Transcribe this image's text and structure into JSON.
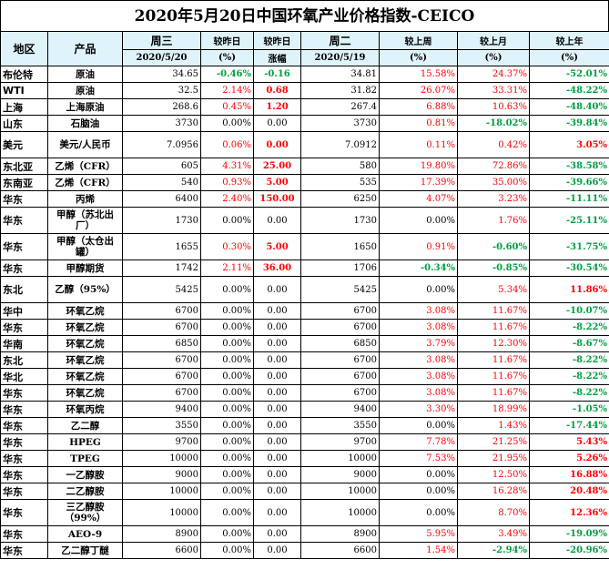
{
  "title": "2020年5月20日中国环氧产业价格指数-CEICO",
  "header": {
    "row1": [
      "地区",
      "产品",
      "周三",
      "较昨日",
      "较昨日",
      "周二",
      "较上周",
      "较上月",
      "较上年"
    ],
    "row2": [
      "",
      "",
      "2020/5/20",
      "(%)",
      "涨幅",
      "2020/5/19",
      "(%)",
      "(%)",
      "(%)"
    ]
  },
  "colors": {
    "positive": "#ff0000",
    "negative": "#00a040",
    "header_bg": "#dff3fb"
  },
  "rows": [
    {
      "region": "布伦特",
      "product": "原油",
      "wed": "34.65",
      "pct": "-0.46%",
      "chg": "-0.16",
      "tue": "34.81",
      "wk": "15.58%",
      "mo": "24.37%",
      "yr": "-52.01%",
      "c": [
        "",
        "g",
        "g",
        "",
        "r",
        "r",
        "g"
      ]
    },
    {
      "region": "WTI",
      "product": "原油",
      "wed": "32.5",
      "pct": "2.14%",
      "chg": "0.68",
      "tue": "31.82",
      "wk": "26.07%",
      "mo": "33.31%",
      "yr": "-48.22%",
      "c": [
        "",
        "r",
        "r",
        "",
        "r",
        "r",
        "g"
      ]
    },
    {
      "region": "上海",
      "product": "上海原油",
      "wed": "268.6",
      "pct": "0.45%",
      "chg": "1.20",
      "tue": "267.4",
      "wk": "6.88%",
      "mo": "10.63%",
      "yr": "-48.40%",
      "c": [
        "",
        "r",
        "r",
        "",
        "r",
        "r",
        "g"
      ]
    },
    {
      "region": "山东",
      "product": "石脑油",
      "wed": "3730",
      "pct": "0.00%",
      "chg": "0.00",
      "tue": "3730",
      "wk": "0.81%",
      "mo": "-18.02%",
      "yr": "-39.84%",
      "c": [
        "",
        "",
        "",
        "",
        "r",
        "g",
        "g"
      ]
    },
    {
      "region": "美元",
      "product": "美元/人民币",
      "wed": "7.0956",
      "pct": "0.06%",
      "chg": "0.00",
      "tue": "7.0912",
      "wk": "0.11%",
      "mo": "0.42%",
      "yr": "3.05%",
      "c": [
        "",
        "r",
        "r",
        "",
        "r",
        "r",
        "r"
      ],
      "tall": true
    },
    {
      "region": "东北亚",
      "product": "乙烯（CFR）",
      "wed": "605",
      "pct": "4.31%",
      "chg": "25.00",
      "tue": "580",
      "wk": "19.80%",
      "mo": "72.86%",
      "yr": "-38.58%",
      "c": [
        "",
        "r",
        "r",
        "",
        "r",
        "r",
        "g"
      ]
    },
    {
      "region": "东南亚",
      "product": "乙烯（CFR）",
      "wed": "540",
      "pct": "0.93%",
      "chg": "5.00",
      "tue": "535",
      "wk": "17.39%",
      "mo": "35.00%",
      "yr": "-39.66%",
      "c": [
        "",
        "r",
        "r",
        "",
        "r",
        "r",
        "g"
      ]
    },
    {
      "region": "华东",
      "product": "丙烯",
      "wed": "6400",
      "pct": "2.40%",
      "chg": "150.00",
      "tue": "6250",
      "wk": "4.07%",
      "mo": "3.23%",
      "yr": "-11.11%",
      "c": [
        "",
        "r",
        "r",
        "",
        "r",
        "r",
        "g"
      ]
    },
    {
      "region": "华东",
      "product": "甲醇（苏北出厂）",
      "wed": "1730",
      "pct": "0.00%",
      "chg": "0.00",
      "tue": "1730",
      "wk": "0.00%",
      "mo": "1.76%",
      "yr": "-25.11%",
      "c": [
        "",
        "",
        "",
        "",
        "",
        "r",
        "g"
      ],
      "tall": true
    },
    {
      "region": "华东",
      "product": "甲醇（太仓出罐）",
      "wed": "1655",
      "pct": "0.30%",
      "chg": "5.00",
      "tue": "1650",
      "wk": "0.91%",
      "mo": "-0.60%",
      "yr": "-31.75%",
      "c": [
        "",
        "r",
        "r",
        "",
        "r",
        "g",
        "g"
      ],
      "tall": true
    },
    {
      "region": "华东",
      "product": "甲醇期货",
      "wed": "1742",
      "pct": "2.11%",
      "chg": "36.00",
      "tue": "1706",
      "wk": "-0.34%",
      "mo": "-0.85%",
      "yr": "-30.54%",
      "c": [
        "",
        "r",
        "r",
        "",
        "g",
        "g",
        "g"
      ]
    },
    {
      "region": "东北",
      "product": "乙醇（95%）",
      "wed": "5425",
      "pct": "0.00%",
      "chg": "0.00",
      "tue": "5425",
      "wk": "0.00%",
      "mo": "5.34%",
      "yr": "11.86%",
      "c": [
        "",
        "",
        "",
        "",
        "",
        "r",
        "r"
      ],
      "tall": true
    },
    {
      "region": "华中",
      "product": "环氧乙烷",
      "wed": "6700",
      "pct": "0.00%",
      "chg": "0.00",
      "tue": "6700",
      "wk": "3.08%",
      "mo": "11.67%",
      "yr": "-10.07%",
      "c": [
        "",
        "",
        "",
        "",
        "r",
        "r",
        "g"
      ]
    },
    {
      "region": "华东",
      "product": "环氧乙烷",
      "wed": "6700",
      "pct": "0.00%",
      "chg": "0.00",
      "tue": "6700",
      "wk": "3.08%",
      "mo": "11.67%",
      "yr": "-8.22%",
      "c": [
        "",
        "",
        "",
        "",
        "r",
        "r",
        "g"
      ]
    },
    {
      "region": "华南",
      "product": "环氧乙烷",
      "wed": "6850",
      "pct": "0.00%",
      "chg": "0.00",
      "tue": "6850",
      "wk": "3.79%",
      "mo": "12.30%",
      "yr": "-8.67%",
      "c": [
        "",
        "",
        "",
        "",
        "r",
        "r",
        "g"
      ]
    },
    {
      "region": "东北",
      "product": "环氧乙烷",
      "wed": "6700",
      "pct": "0.00%",
      "chg": "0.00",
      "tue": "6700",
      "wk": "3.08%",
      "mo": "11.67%",
      "yr": "-8.22%",
      "c": [
        "",
        "",
        "",
        "",
        "r",
        "r",
        "g"
      ]
    },
    {
      "region": "华北",
      "product": "环氧乙烷",
      "wed": "6700",
      "pct": "0.00%",
      "chg": "0.00",
      "tue": "6700",
      "wk": "3.08%",
      "mo": "11.67%",
      "yr": "-8.22%",
      "c": [
        "",
        "",
        "",
        "",
        "r",
        "r",
        "g"
      ]
    },
    {
      "region": "华东",
      "product": "环氧乙烷",
      "wed": "6700",
      "pct": "0.00%",
      "chg": "0.00",
      "tue": "6700",
      "wk": "3.08%",
      "mo": "11.67%",
      "yr": "-8.22%",
      "c": [
        "",
        "",
        "",
        "",
        "r",
        "r",
        "g"
      ]
    },
    {
      "region": "华东",
      "product": "环氧丙烷",
      "wed": "9400",
      "pct": "0.00%",
      "chg": "0.00",
      "tue": "9400",
      "wk": "3.30%",
      "mo": "18.99%",
      "yr": "-1.05%",
      "c": [
        "",
        "",
        "",
        "",
        "r",
        "r",
        "g"
      ]
    },
    {
      "region": "华东",
      "product": "乙二醇",
      "wed": "3550",
      "pct": "0.00%",
      "chg": "0.00",
      "tue": "3550",
      "wk": "0.00%",
      "mo": "1.43%",
      "yr": "-17.44%",
      "c": [
        "",
        "",
        "",
        "",
        "",
        "r",
        "g"
      ]
    },
    {
      "region": "华东",
      "product": "HPEG",
      "wed": "9700",
      "pct": "0.00%",
      "chg": "0.00",
      "tue": "9700",
      "wk": "7.78%",
      "mo": "21.25%",
      "yr": "5.43%",
      "c": [
        "",
        "",
        "",
        "",
        "r",
        "r",
        "r"
      ]
    },
    {
      "region": "华东",
      "product": "TPEG",
      "wed": "10000",
      "pct": "0.00%",
      "chg": "0.00",
      "tue": "10000",
      "wk": "7.53%",
      "mo": "21.95%",
      "yr": "5.26%",
      "c": [
        "",
        "",
        "",
        "",
        "r",
        "r",
        "r"
      ]
    },
    {
      "region": "华东",
      "product": "一乙醇胺",
      "wed": "9000",
      "pct": "0.00%",
      "chg": "0.00",
      "tue": "9000",
      "wk": "0.00%",
      "mo": "12.50%",
      "yr": "16.88%",
      "c": [
        "",
        "",
        "",
        "",
        "",
        "r",
        "r"
      ]
    },
    {
      "region": "华东",
      "product": "二乙醇胺",
      "wed": "10000",
      "pct": "0.00%",
      "chg": "0.00",
      "tue": "10000",
      "wk": "0.00%",
      "mo": "16.28%",
      "yr": "20.48%",
      "c": [
        "",
        "",
        "",
        "",
        "",
        "r",
        "r"
      ]
    },
    {
      "region": "华东",
      "product": "三乙醇胺（99%）",
      "wed": "10000",
      "pct": "0.00%",
      "chg": "0.00",
      "tue": "10000",
      "wk": "0.00%",
      "mo": "8.70%",
      "yr": "12.36%",
      "c": [
        "",
        "",
        "",
        "",
        "",
        "r",
        "r"
      ],
      "tall": true
    },
    {
      "region": "华东",
      "product": "AEO-9",
      "wed": "8900",
      "pct": "0.00%",
      "chg": "0.00",
      "tue": "8900",
      "wk": "5.95%",
      "mo": "3.49%",
      "yr": "-19.09%",
      "c": [
        "",
        "",
        "",
        "",
        "r",
        "r",
        "g"
      ]
    },
    {
      "region": "华东",
      "product": "乙二醇丁醚",
      "wed": "6600",
      "pct": "0.00%",
      "chg": "0.00",
      "tue": "6600",
      "wk": "1.54%",
      "mo": "-2.94%",
      "yr": "-20.96%",
      "c": [
        "",
        "",
        "",
        "",
        "r",
        "g",
        "g"
      ]
    }
  ]
}
